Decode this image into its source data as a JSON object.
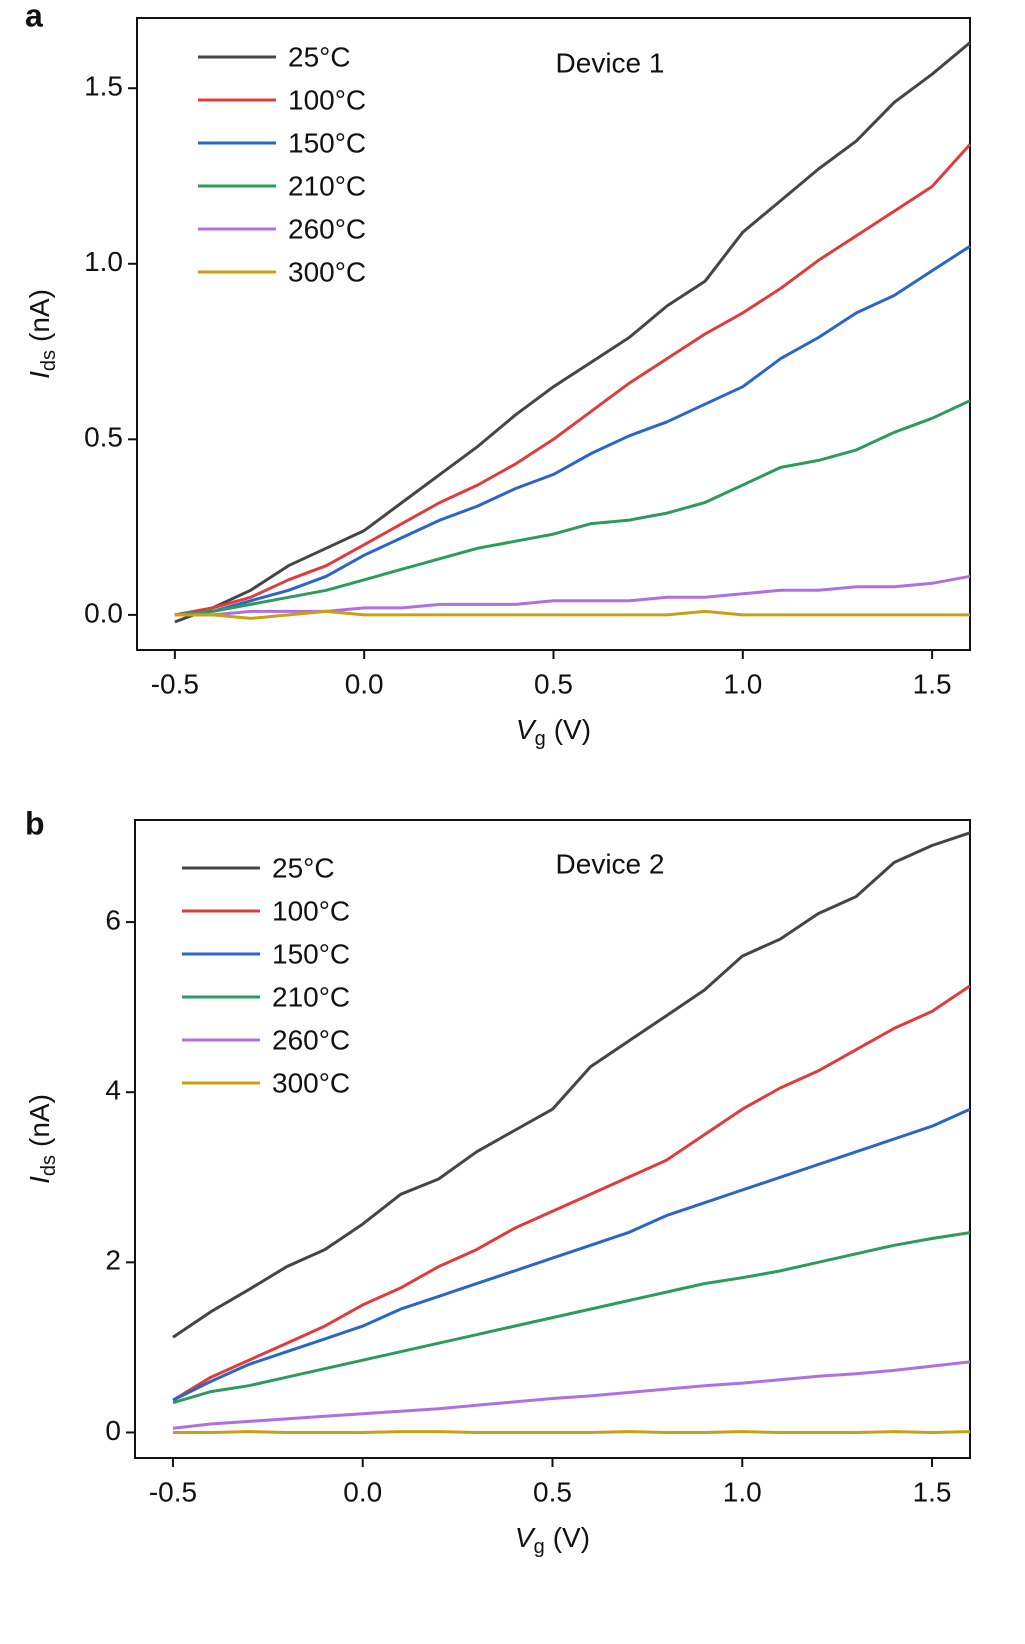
{
  "chart_data": [
    {
      "type": "line",
      "panel_label": "a",
      "annotation": "Device 1",
      "x_label": {
        "symbol": "V",
        "subscript": "g",
        "unit": "(V)"
      },
      "y_label": {
        "symbol": "I",
        "subscript": "ds",
        "unit": "(nA)"
      },
      "x": [
        -0.5,
        -0.4,
        -0.3,
        -0.2,
        -0.1,
        0,
        0.1,
        0.2,
        0.3,
        0.4,
        0.5,
        0.6,
        0.7,
        0.8,
        0.9,
        1.0,
        1.1,
        1.2,
        1.3,
        1.4,
        1.5,
        1.6
      ],
      "series": [
        {
          "name": "25°C",
          "color": "#454545",
          "values": [
            -0.02,
            0.02,
            0.07,
            0.14,
            0.19,
            0.24,
            0.32,
            0.4,
            0.48,
            0.57,
            0.65,
            0.72,
            0.79,
            0.88,
            0.95,
            1.09,
            1.18,
            1.27,
            1.35,
            1.46,
            1.54,
            1.63
          ]
        },
        {
          "name": "100°C",
          "color": "#e03c3c",
          "values": [
            0,
            0.02,
            0.05,
            0.1,
            0.14,
            0.2,
            0.26,
            0.32,
            0.37,
            0.43,
            0.5,
            0.58,
            0.66,
            0.73,
            0.8,
            0.86,
            0.93,
            1.01,
            1.08,
            1.15,
            1.22,
            1.34
          ]
        },
        {
          "name": "150°C",
          "color": "#2a66c8",
          "values": [
            0,
            0.01,
            0.04,
            0.07,
            0.11,
            0.17,
            0.22,
            0.27,
            0.31,
            0.36,
            0.4,
            0.46,
            0.51,
            0.55,
            0.6,
            0.65,
            0.73,
            0.79,
            0.86,
            0.91,
            0.98,
            1.05
          ]
        },
        {
          "name": "210°C",
          "color": "#2e9a5c",
          "values": [
            0,
            0.01,
            0.03,
            0.05,
            0.07,
            0.1,
            0.13,
            0.16,
            0.19,
            0.21,
            0.23,
            0.26,
            0.27,
            0.29,
            0.32,
            0.37,
            0.42,
            0.44,
            0.47,
            0.52,
            0.56,
            0.61
          ]
        },
        {
          "name": "260°C",
          "color": "#b070e0",
          "values": [
            0,
            0,
            0.01,
            0.01,
            0.01,
            0.02,
            0.02,
            0.03,
            0.03,
            0.03,
            0.04,
            0.04,
            0.04,
            0.05,
            0.05,
            0.06,
            0.07,
            0.07,
            0.08,
            0.08,
            0.09,
            0.11
          ]
        },
        {
          "name": "300°C",
          "color": "#c9a010",
          "values": [
            0,
            0,
            -0.01,
            0,
            0.01,
            0,
            0,
            0,
            0,
            0,
            0,
            0,
            0,
            0,
            0.01,
            0,
            0,
            0,
            0,
            0,
            0,
            0
          ]
        }
      ],
      "xlim": [
        -0.6,
        1.6
      ],
      "ylim": [
        -0.1,
        1.7
      ],
      "xticks": [
        -0.5,
        {
          "value": 0,
          "label": "0.0"
        },
        0.5,
        {
          "value": 1,
          "label": "1.0"
        },
        1.5
      ],
      "yticks": [
        {
          "value": 0,
          "label": "0.0"
        },
        0.5,
        {
          "value": 1,
          "label": "1.0"
        },
        1.5
      ],
      "grid": false,
      "legend": "upper-left"
    },
    {
      "type": "line",
      "panel_label": "b",
      "annotation": "Device 2",
      "x_label": {
        "symbol": "V",
        "subscript": "g",
        "unit": "(V)"
      },
      "y_label": {
        "symbol": "I",
        "subscript": "ds",
        "unit": "(nA)"
      },
      "x": [
        -0.5,
        -0.4,
        -0.3,
        -0.2,
        -0.1,
        0,
        0.1,
        0.2,
        0.3,
        0.4,
        0.5,
        0.6,
        0.7,
        0.8,
        0.9,
        1.0,
        1.1,
        1.2,
        1.3,
        1.4,
        1.5,
        1.6
      ],
      "series": [
        {
          "name": "25°C",
          "color": "#454545",
          "values": [
            1.12,
            1.42,
            1.68,
            1.95,
            2.15,
            2.45,
            2.8,
            2.98,
            3.3,
            3.55,
            3.8,
            4.3,
            4.6,
            4.9,
            5.2,
            5.6,
            5.8,
            6.1,
            6.3,
            6.7,
            6.9,
            7.05
          ]
        },
        {
          "name": "100°C",
          "color": "#e03c3c",
          "values": [
            0.38,
            0.65,
            0.85,
            1.05,
            1.25,
            1.5,
            1.7,
            1.95,
            2.15,
            2.4,
            2.6,
            2.8,
            3.0,
            3.2,
            3.5,
            3.8,
            4.05,
            4.25,
            4.5,
            4.75,
            4.95,
            5.25
          ]
        },
        {
          "name": "150°C",
          "color": "#2a66c8",
          "values": [
            0.38,
            0.6,
            0.8,
            0.95,
            1.1,
            1.25,
            1.45,
            1.6,
            1.75,
            1.9,
            2.05,
            2.2,
            2.35,
            2.55,
            2.7,
            2.85,
            3.0,
            3.15,
            3.3,
            3.45,
            3.6,
            3.8
          ]
        },
        {
          "name": "210°C",
          "color": "#2e9a5c",
          "values": [
            0.35,
            0.48,
            0.55,
            0.65,
            0.75,
            0.85,
            0.95,
            1.05,
            1.15,
            1.25,
            1.35,
            1.45,
            1.55,
            1.65,
            1.75,
            1.82,
            1.9,
            2.0,
            2.1,
            2.2,
            2.28,
            2.35
          ]
        },
        {
          "name": "260°C",
          "color": "#b070e0",
          "values": [
            0.05,
            0.1,
            0.13,
            0.16,
            0.19,
            0.22,
            0.25,
            0.28,
            0.32,
            0.36,
            0.4,
            0.43,
            0.47,
            0.51,
            0.55,
            0.58,
            0.62,
            0.66,
            0.69,
            0.73,
            0.78,
            0.83
          ]
        },
        {
          "name": "300°C",
          "color": "#c9a010",
          "values": [
            0,
            0,
            0.01,
            0,
            0,
            0,
            0.01,
            0.01,
            0,
            0,
            0,
            0,
            0.01,
            0,
            0,
            0.01,
            0,
            0,
            0,
            0.01,
            0,
            0.01
          ]
        }
      ],
      "xlim": [
        -0.6,
        1.6
      ],
      "ylim": [
        -0.3,
        7.2
      ],
      "xticks": [
        -0.5,
        {
          "value": 0,
          "label": "0.0"
        },
        0.5,
        {
          "value": 1,
          "label": "1.0"
        },
        1.5
      ],
      "yticks": [
        0,
        2,
        4,
        6
      ],
      "grid": false,
      "legend": "upper-left"
    }
  ]
}
